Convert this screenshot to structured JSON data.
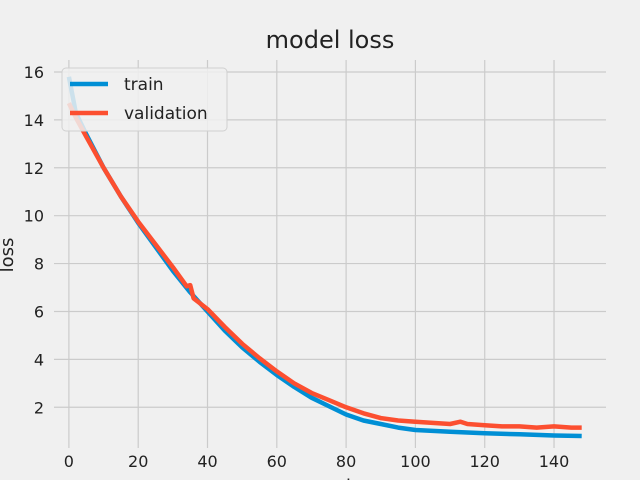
{
  "chart_data": {
    "type": "line",
    "title": "model loss",
    "xlabel": "epoch",
    "ylabel": "loss",
    "xlim": [
      -4.3,
      155
    ],
    "ylim": [
      0.3,
      16.5
    ],
    "xticks": [
      0,
      20,
      40,
      60,
      80,
      100,
      120,
      140
    ],
    "yticks": [
      2,
      4,
      6,
      8,
      10,
      12,
      14,
      16
    ],
    "grid": true,
    "legend": "top-left",
    "series": [
      {
        "name": "train",
        "color": "#008fd5",
        "x": [
          0,
          2,
          5,
          10,
          15,
          20,
          25,
          30,
          35,
          40,
          45,
          50,
          55,
          60,
          65,
          70,
          75,
          80,
          85,
          90,
          95,
          100,
          110,
          120,
          130,
          140,
          148
        ],
        "y": [
          15.8,
          14.3,
          13.4,
          12.0,
          10.8,
          9.7,
          8.7,
          7.7,
          6.8,
          6.0,
          5.2,
          4.5,
          3.9,
          3.35,
          2.85,
          2.4,
          2.05,
          1.7,
          1.45,
          1.3,
          1.15,
          1.05,
          0.98,
          0.92,
          0.87,
          0.82,
          0.8
        ]
      },
      {
        "name": "validation",
        "color": "#fc4f30",
        "x": [
          0,
          2,
          5,
          10,
          15,
          20,
          25,
          30,
          34,
          35,
          36,
          40,
          45,
          50,
          55,
          60,
          65,
          70,
          75,
          80,
          85,
          90,
          95,
          100,
          105,
          110,
          113,
          115,
          120,
          125,
          130,
          135,
          140,
          145,
          148
        ],
        "y": [
          14.7,
          14.1,
          13.3,
          12.0,
          10.8,
          9.75,
          8.8,
          7.85,
          7.05,
          7.1,
          6.55,
          6.1,
          5.35,
          4.65,
          4.05,
          3.5,
          3.0,
          2.6,
          2.3,
          2.0,
          1.75,
          1.55,
          1.45,
          1.4,
          1.35,
          1.3,
          1.4,
          1.3,
          1.25,
          1.2,
          1.2,
          1.15,
          1.2,
          1.15,
          1.15
        ]
      }
    ]
  }
}
